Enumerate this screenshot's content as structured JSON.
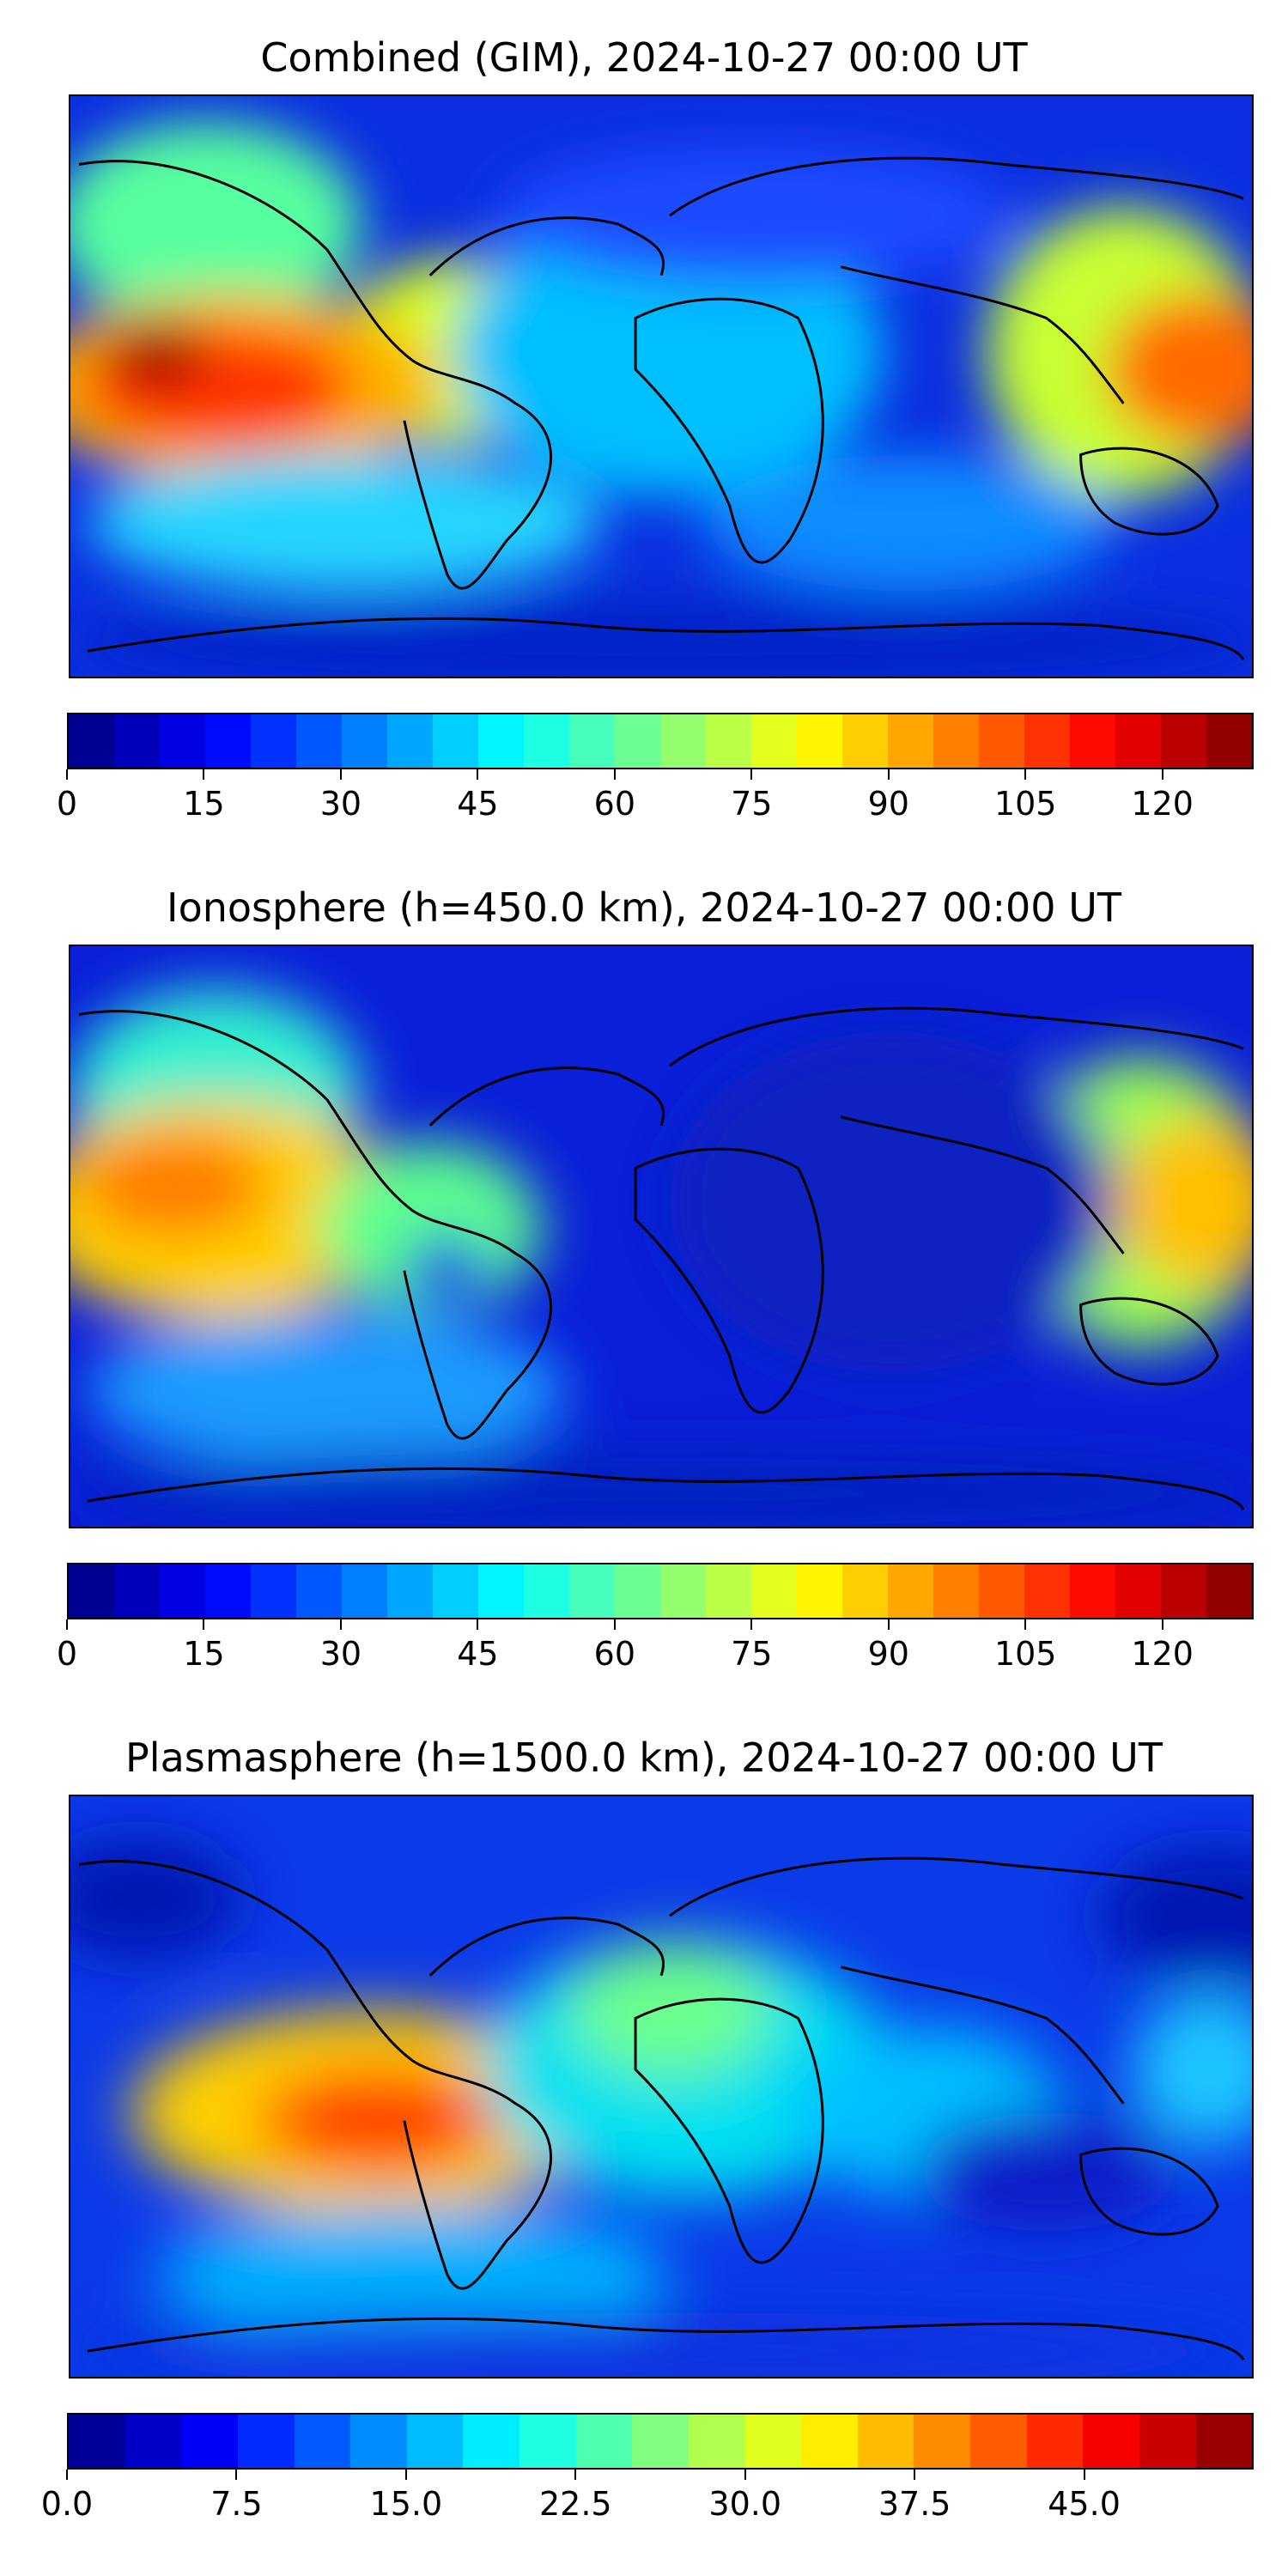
{
  "panels": [
    {
      "title": "Combined (GIM), 2024-10-27 00:00 UT",
      "colorbar": {
        "vmin": 0,
        "vmax": 130,
        "levels": 26,
        "ticks": [
          "0",
          "15",
          "30",
          "45",
          "60",
          "75",
          "90",
          "105",
          "120"
        ],
        "tick_values": [
          0,
          15,
          30,
          45,
          60,
          75,
          90,
          105,
          120
        ]
      }
    },
    {
      "title": "Ionosphere  (h=450.0 km), 2024-10-27 00:00 UT",
      "colorbar": {
        "vmin": 0,
        "vmax": 130,
        "levels": 26,
        "ticks": [
          "0",
          "15",
          "30",
          "45",
          "60",
          "75",
          "90",
          "105",
          "120"
        ],
        "tick_values": [
          0,
          15,
          30,
          45,
          60,
          75,
          90,
          105,
          120
        ]
      }
    },
    {
      "title": "Plasmasphere (h=1500.0 km), 2024-10-27 00:00 UT",
      "colorbar": {
        "vmin": 0,
        "vmax": 52.5,
        "levels": 21,
        "ticks": [
          "0.0",
          "7.5",
          "15.0",
          "22.5",
          "30.0",
          "37.5",
          "45.0"
        ],
        "tick_values": [
          0,
          7.5,
          15,
          22.5,
          30,
          37.5,
          45
        ]
      }
    }
  ],
  "colormap": "jet"
}
